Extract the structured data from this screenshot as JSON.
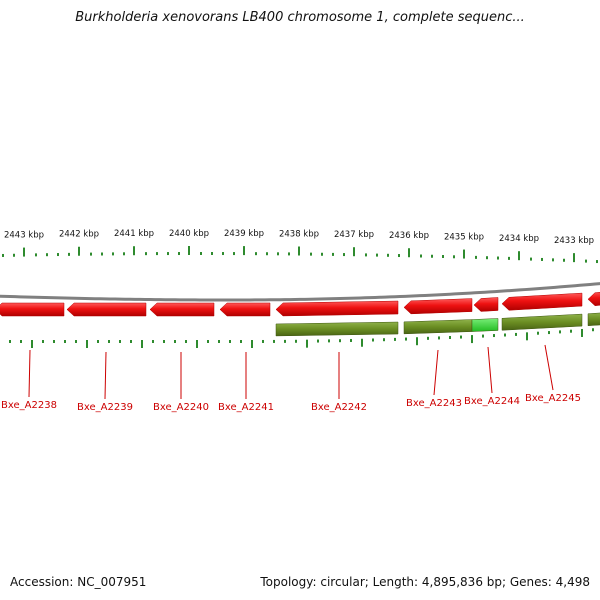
{
  "header": {
    "title": "Burkholderia xenovorans LB400 chromosome 1, complete sequenc..."
  },
  "ruler": {
    "labels": [
      "2443 kbp",
      "2442 kbp",
      "2441 kbp",
      "2440 kbp",
      "2439 kbp",
      "2438 kbp",
      "2437 kbp",
      "2436 kbp",
      "2435 kbp",
      "2434 kbp",
      "2433 kbp"
    ]
  },
  "genes": [
    {
      "label": "Bxe_A2238",
      "strand": "reverse"
    },
    {
      "label": "Bxe_A2239",
      "strand": "reverse"
    },
    {
      "label": "Bxe_A2240",
      "strand": "reverse"
    },
    {
      "label": "Bxe_A2241",
      "strand": "reverse"
    },
    {
      "label": "Bxe_A2242",
      "strand": "reverse"
    },
    {
      "label": "Bxe_A2243",
      "strand": "reverse"
    },
    {
      "label": "Bxe_A2244",
      "strand": "reverse"
    },
    {
      "label": "Bxe_A2245",
      "strand": "reverse"
    }
  ],
  "colors": {
    "gene": "#ee1111",
    "cds": "#6b8e23",
    "highlight": "#33cc33",
    "tick": "#2e8b2e",
    "backbone": "#808080",
    "label": "#cc0000"
  },
  "footer": {
    "accession": "Accession: NC_007951",
    "summary": "Topology: circular; Length: 4,895,836 bp; Genes: 4,498"
  }
}
